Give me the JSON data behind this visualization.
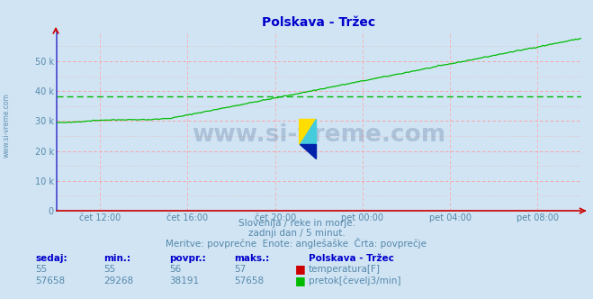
{
  "title": "Polskava - Tržec",
  "title_color": "#0000cc",
  "bg_color": "#d0e4f4",
  "plot_bg_color": "#d0e4f4",
  "grid_color_h": "#ff9999",
  "grid_color_v": "#ffaaaa",
  "y_axis_color": "#4444cc",
  "x_axis_color": "#cc0000",
  "x_tick_labels": [
    "čet 12:00",
    "čet 16:00",
    "čet 20:00",
    "pet 00:00",
    "pet 04:00",
    "pet 08:00"
  ],
  "x_tick_positions": [
    0.083,
    0.25,
    0.417,
    0.583,
    0.75,
    0.917
  ],
  "y_ticks": [
    0,
    10000,
    20000,
    30000,
    40000,
    50000
  ],
  "y_tick_labels": [
    "0",
    "10 k",
    "20 k",
    "30 k",
    "40 k",
    "50 k"
  ],
  "ylim": [
    0,
    60000
  ],
  "avg_line_value": 38191,
  "avg_line_color": "#00bb00",
  "flow_line_color": "#00bb00",
  "temp_line_color": "#cc0000",
  "text_color": "#5588aa",
  "watermark": "www.si-vreme.com",
  "watermark_color": "#1a3a6a",
  "sidebar_text": "www.si-vreme.com",
  "subtitle1": "Slovenija / reke in morje.",
  "subtitle2": "zadnji dan / 5 minut.",
  "subtitle3": "Meritve: povprečne  Enote: anglešaške  Črta: povprečje",
  "legend_title": "Polskava - Tržec",
  "legend_entries": [
    {
      "label": "temperatura[F]",
      "color": "#cc0000"
    },
    {
      "label": "pretok[čevelj3/min]",
      "color": "#00bb00"
    }
  ],
  "table_headers": [
    "sedaj:",
    "min.:",
    "povpr.:",
    "maks.:"
  ],
  "table_row1": [
    "55",
    "55",
    "56",
    "57"
  ],
  "table_row2": [
    "57658",
    "29268",
    "38191",
    "57658"
  ],
  "n_points": 288,
  "temp_value": 55,
  "logo_colors": [
    "#ffdd00",
    "#00aacc",
    "#0033cc"
  ]
}
